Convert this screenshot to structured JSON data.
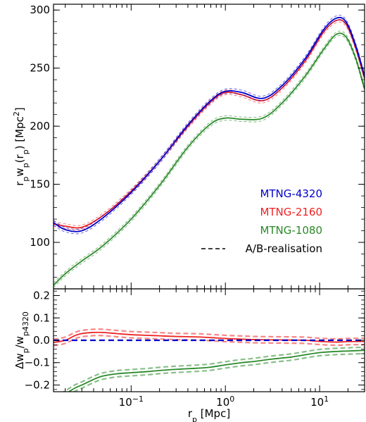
{
  "chart_data": [
    {
      "type": "line",
      "panel": "top",
      "xlabel": "",
      "ylabel_main": "r",
      "ylabel_sub1": "p",
      "ylabel_mid": "w",
      "ylabel_sub2": "p",
      "ylabel_paren": "(r",
      "ylabel_sub3": "p",
      "ylabel_tail": ") [Mpc",
      "ylabel_sup": "2",
      "ylabel_end": "]",
      "xscale": "log",
      "xlim": [
        0.015,
        30
      ],
      "ylim": [
        60,
        305
      ],
      "yticks": [
        100,
        150,
        200,
        250,
        300
      ],
      "ytick_labels": [
        "100",
        "150",
        "200",
        "250",
        "300"
      ],
      "legend_position": "lower-right",
      "legend": [
        {
          "label": "MTNG-4320",
          "color": "#0000cc",
          "style": "solid"
        },
        {
          "label": "MTNG-2160",
          "color": "#ee2222",
          "style": "solid"
        },
        {
          "label": "MTNG-1080",
          "color": "#2a8a2a",
          "style": "solid"
        },
        {
          "label": "A/B-realisation",
          "color": "#000000",
          "style": "dashed"
        }
      ],
      "x": [
        0.015,
        0.02,
        0.03,
        0.05,
        0.1,
        0.2,
        0.4,
        0.7,
        1.0,
        1.5,
        2.5,
        4.0,
        7.0,
        11.0,
        15.0,
        19.0,
        24.0,
        30.0
      ],
      "series": [
        {
          "name": "MTNG-4320",
          "color": "#0000cc",
          "values": [
            117,
            111,
            110,
            121,
            143,
            170,
            201,
            222,
            230,
            229,
            224,
            235,
            258,
            283,
            293,
            290,
            270,
            243
          ]
        },
        {
          "name": "MTNG-2160",
          "color": "#ee2222",
          "values": [
            116,
            114,
            113,
            123,
            144,
            170,
            200,
            221,
            229,
            227,
            222,
            233,
            256,
            281,
            291,
            288,
            268,
            241
          ]
        },
        {
          "name": "MTNG-1080",
          "color": "#2a8a2a",
          "values": [
            63,
            73,
            84,
            97,
            120,
            149,
            182,
            202,
            207,
            206,
            207,
            220,
            243,
            266,
            279,
            277,
            259,
            232
          ]
        }
      ]
    },
    {
      "type": "line",
      "panel": "bottom",
      "xlabel_main": "r",
      "xlabel_sub": "p",
      "xlabel_tail": " [Mpc]",
      "ylabel_delta": "Δw",
      "ylabel_sub1": "p",
      "ylabel_slash": "/w",
      "ylabel_sub2": "p4320",
      "xscale": "log",
      "xlim": [
        0.015,
        30
      ],
      "ylim": [
        -0.23,
        0.23
      ],
      "yticks": [
        -0.2,
        -0.1,
        0.0,
        0.1,
        0.2
      ],
      "ytick_labels": [
        "−0.2",
        "−0.1",
        "0.0",
        "0.1",
        "0.2"
      ],
      "xticks": [
        0.1,
        1,
        10
      ],
      "xtick_base": "10",
      "xtick_exps": [
        "−1",
        "0",
        "1"
      ],
      "x": [
        0.015,
        0.02,
        0.025,
        0.03,
        0.04,
        0.05,
        0.07,
        0.1,
        0.15,
        0.2,
        0.3,
        0.5,
        0.7,
        1.0,
        1.5,
        2.0,
        3.0,
        5.0,
        7.0,
        10.0,
        15.0,
        20.0,
        30.0
      ],
      "series": [
        {
          "name": "MTNG-4320",
          "color": "#0000cc",
          "values": [
            0,
            0,
            0,
            0,
            0,
            0,
            0,
            0,
            0,
            0,
            0,
            0,
            0,
            0,
            0,
            0,
            0,
            0,
            0,
            0,
            0,
            0,
            0
          ]
        },
        {
          "name": "MTNG-2160",
          "color": "#ee2222",
          "values": [
            -0.01,
            0.0,
            0.02,
            0.03,
            0.035,
            0.035,
            0.03,
            0.025,
            0.022,
            0.02,
            0.017,
            0.015,
            0.012,
            0.008,
            0.005,
            0.003,
            0.002,
            0.001,
            0.0,
            -0.005,
            -0.008,
            -0.006,
            -0.005
          ]
        },
        {
          "name": "MTNG-1080",
          "color": "#2a8a2a",
          "values": [
            -0.27,
            -0.24,
            -0.215,
            -0.2,
            -0.175,
            -0.16,
            -0.15,
            -0.145,
            -0.14,
            -0.135,
            -0.13,
            -0.125,
            -0.12,
            -0.11,
            -0.1,
            -0.095,
            -0.085,
            -0.075,
            -0.065,
            -0.055,
            -0.05,
            -0.048,
            -0.045
          ]
        }
      ]
    }
  ]
}
